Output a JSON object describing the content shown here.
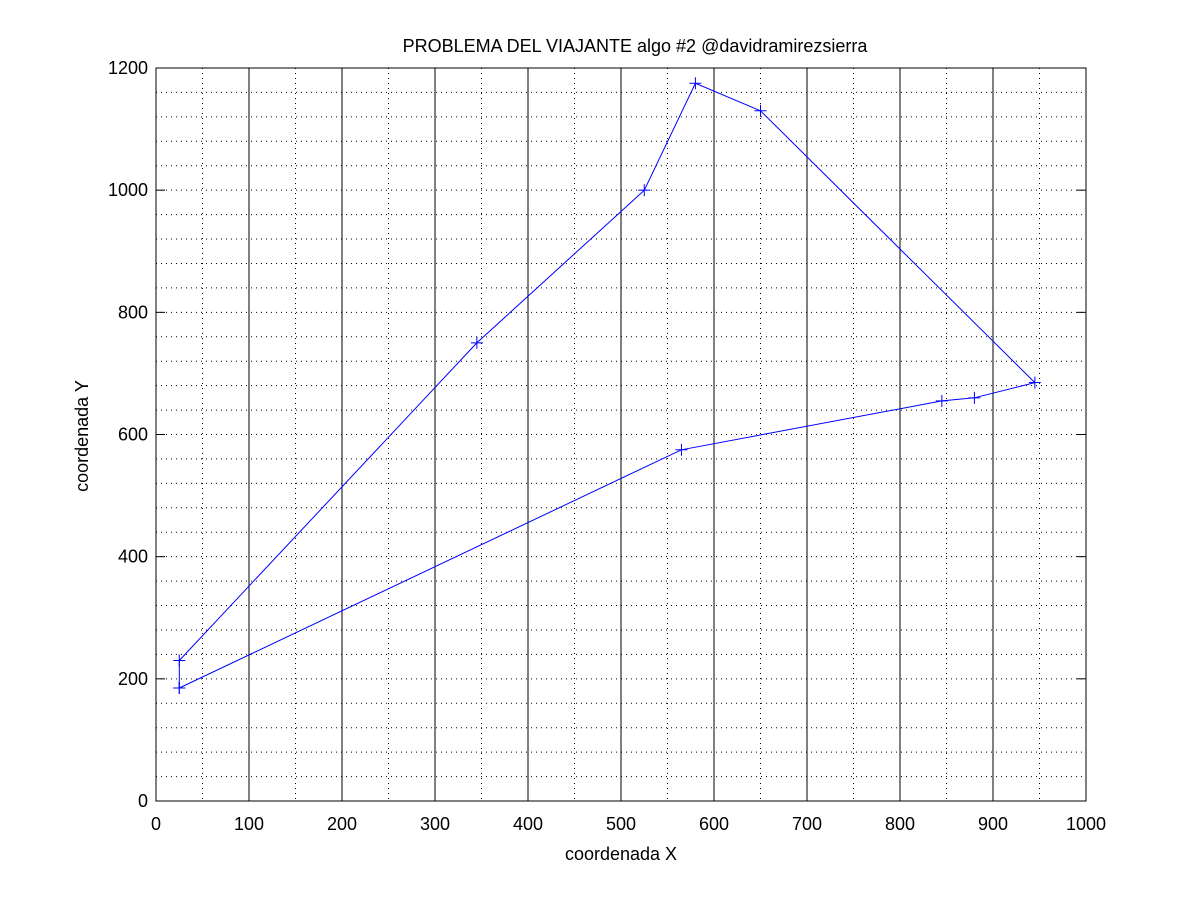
{
  "chart_data": {
    "type": "line",
    "title": "PROBLEMA DEL VIAJANTE algo #2 @davidramirezsierra",
    "xlabel": "coordenada X",
    "ylabel": "coordenada Y",
    "xlim": [
      0,
      1000
    ],
    "ylim": [
      0,
      1200
    ],
    "x_ticks": [
      0,
      100,
      200,
      300,
      400,
      500,
      600,
      700,
      800,
      900,
      1000
    ],
    "y_ticks": [
      0,
      200,
      400,
      600,
      800,
      1000,
      1200
    ],
    "x_minor_ticks": [
      50,
      150,
      250,
      350,
      450,
      550,
      650,
      750,
      850,
      950
    ],
    "y_minor_ticks": [
      40,
      80,
      120,
      160,
      240,
      280,
      320,
      360,
      440,
      480,
      520,
      560,
      640,
      680,
      720,
      760,
      840,
      880,
      920,
      960,
      1040,
      1080,
      1120,
      1160
    ],
    "grid": "major solid vertical lines, dotted minor grid",
    "marker": "+",
    "line_color": "#0000ff",
    "series": [
      {
        "x": [
          25,
          25,
          345,
          525,
          580,
          650,
          945,
          880,
          845,
          565,
          25
        ],
        "y": [
          185,
          230,
          750,
          1000,
          1175,
          1130,
          685,
          660,
          655,
          575,
          185
        ]
      }
    ]
  }
}
